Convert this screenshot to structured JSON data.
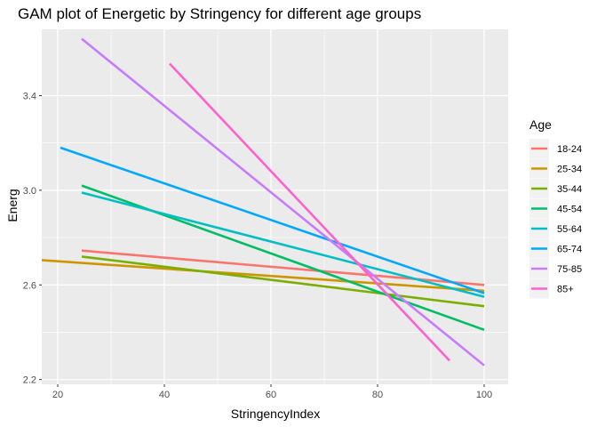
{
  "chart_data": {
    "type": "line",
    "title": "GAM plot of Energetic by Stringency for different age groups",
    "xlabel": "StringencyIndex",
    "ylabel": "Energ",
    "xlim": [
      17,
      104.5
    ],
    "ylim": [
      2.18,
      3.68
    ],
    "xticks": [
      20,
      40,
      60,
      80,
      100
    ],
    "yticks": [
      2.2,
      2.6,
      3.0,
      3.4
    ],
    "xtick_labels": [
      "20",
      "40",
      "60",
      "80",
      "100"
    ],
    "ytick_labels": [
      "2.2",
      "2.6",
      "3.0",
      "3.4"
    ],
    "grid": true,
    "legend_title": "Age",
    "legend_position": "right",
    "series": [
      {
        "name": "18-24",
        "color": "#F8766D",
        "x": [
          24.5,
          100
        ],
        "y": [
          2.745,
          2.6
        ]
      },
      {
        "name": "25-34",
        "color": "#CD9600",
        "x": [
          17,
          100
        ],
        "y": [
          2.705,
          2.575
        ]
      },
      {
        "name": "35-44",
        "color": "#7CAE00",
        "x": [
          24.5,
          100
        ],
        "y": [
          2.72,
          2.51
        ]
      },
      {
        "name": "45-54",
        "color": "#00BE67",
        "x": [
          24.5,
          100
        ],
        "y": [
          3.02,
          2.41
        ]
      },
      {
        "name": "55-64",
        "color": "#00BFC4",
        "x": [
          24.5,
          100
        ],
        "y": [
          2.99,
          2.55
        ]
      },
      {
        "name": "65-74",
        "color": "#00A9FF",
        "x": [
          20.5,
          100
        ],
        "y": [
          3.18,
          2.565
        ]
      },
      {
        "name": "75-85",
        "color": "#C77CFF",
        "x": [
          24.5,
          100
        ],
        "y": [
          3.64,
          2.26
        ]
      },
      {
        "name": "85+",
        "color": "#FF61CC",
        "x": [
          41,
          93.5
        ],
        "y": [
          3.535,
          2.28
        ]
      }
    ]
  }
}
